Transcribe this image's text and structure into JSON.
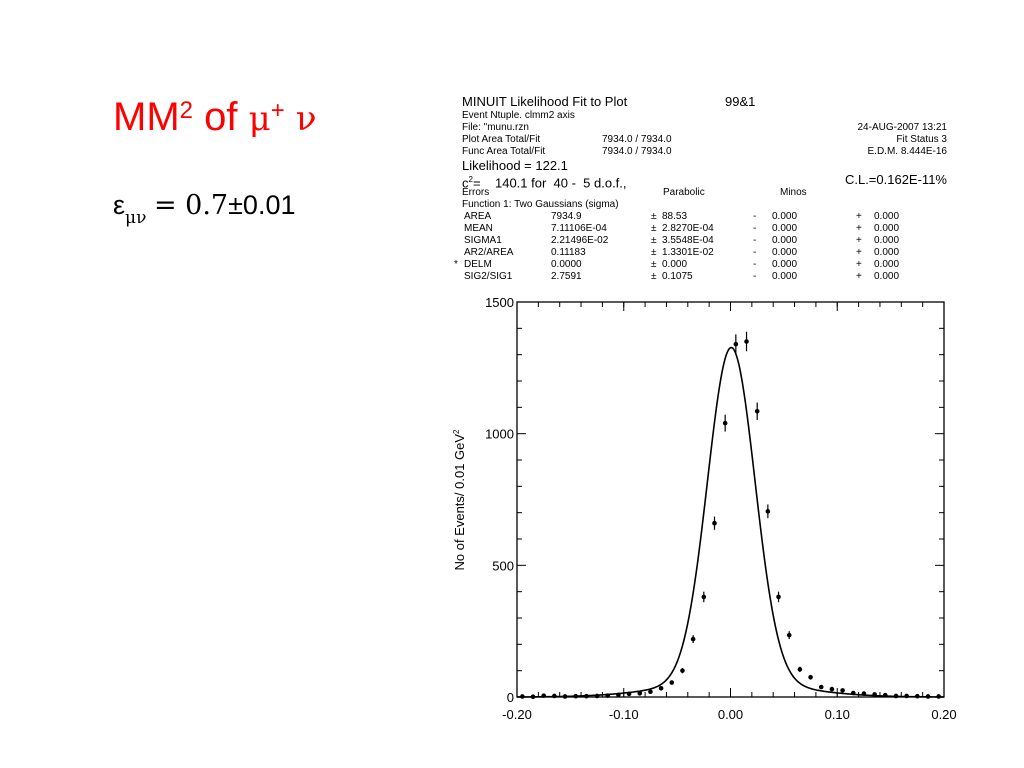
{
  "slide": {
    "title_main": "MM",
    "title_sup": "2",
    "title_of": " of ",
    "title_mu": "μ",
    "title_plus": "+",
    "title_nu": "ν",
    "eff_symbol": "ε",
    "eff_sub": "μν",
    "eff_eq": "= 0.7",
    "eff_err": "±0.01"
  },
  "fit_box": {
    "title": "MINUIT Likelihood Fit to Plot",
    "plot_id": "99&1",
    "ntuple": "Event Ntuple. clmm2 axis",
    "file": "File: \"munu.rzn",
    "date": "24-AUG-2007 13:21",
    "plot_area_label": "Plot Area Total/Fit",
    "plot_area_value": "7934.0 / 7934.0",
    "fit_status": "Fit Status  3",
    "func_area_label": "Func Area Total/Fit",
    "func_area_value": "7934.0 / 7934.0",
    "edm": "E.D.M. 8.444E-16",
    "likelihood": "Likelihood =    122.1",
    "chi2_sym": "c",
    "chi2_sup": "2",
    "chi2_text": "=    140.1 for  40 -  5 d.o.f.,",
    "cl": "C.L.=0.162E-11%",
    "errors": "Errors",
    "parabolic": "Parabolic",
    "minos": "Minos",
    "function": "Function  1: Two Gaussians (sigma)",
    "params": [
      {
        "mark": "",
        "name": "AREA",
        "value": "7934.9",
        "pm": "±",
        "err": "88.53",
        "minus": "-",
        "mneg": "0.000",
        "plus": "+",
        "mpos": "0.000"
      },
      {
        "mark": "",
        "name": "MEAN",
        "value": "7.11106E-04",
        "pm": "±",
        "err": "2.8270E-04",
        "minus": "-",
        "mneg": "0.000",
        "plus": "+",
        "mpos": "0.000"
      },
      {
        "mark": "",
        "name": "SIGMA1",
        "value": "2.21496E-02",
        "pm": "±",
        "err": "3.5548E-04",
        "minus": "-",
        "mneg": "0.000",
        "plus": "+",
        "mpos": "0.000"
      },
      {
        "mark": "",
        "name": "AR2/AREA",
        "value": "0.11183",
        "pm": "±",
        "err": "1.3301E-02",
        "minus": "-",
        "mneg": "0.000",
        "plus": "+",
        "mpos": "0.000"
      },
      {
        "mark": "*",
        "name": "DELM",
        "value": "0.0000",
        "pm": "±",
        "err": "0.000",
        "minus": "-",
        "mneg": "0.000",
        "plus": "+",
        "mpos": "0.000"
      },
      {
        "mark": "",
        "name": "SIG2/SIG1",
        "value": "2.7591",
        "pm": "±",
        "err": "0.1075",
        "minus": "-",
        "mneg": "0.000",
        "plus": "+",
        "mpos": "0.000"
      }
    ]
  },
  "chart_data": {
    "type": "scatter",
    "title": "",
    "xlabel": "",
    "ylabel": "No of Events/ 0.01 GeV",
    "ylabel_sup": "2",
    "xlim": [
      -0.2,
      0.2
    ],
    "ylim": [
      0,
      1500
    ],
    "x_ticks": [
      "-0.20",
      "-0.10",
      "0.00",
      "0.10",
      "0.20"
    ],
    "x_tick_values": [
      -0.2,
      -0.1,
      0.0,
      0.1,
      0.2
    ],
    "y_ticks": [
      "0",
      "500",
      "1000",
      "1500"
    ],
    "y_tick_values": [
      0,
      500,
      1000,
      1500
    ],
    "grid": false,
    "series": [
      {
        "kind": "data",
        "points": [
          [
            -0.195,
            2,
            0
          ],
          [
            -0.185,
            1,
            0
          ],
          [
            -0.175,
            5,
            3
          ],
          [
            -0.165,
            4,
            3
          ],
          [
            -0.155,
            2,
            0
          ],
          [
            -0.145,
            3,
            0
          ],
          [
            -0.135,
            3,
            0
          ],
          [
            -0.125,
            4,
            3
          ],
          [
            -0.115,
            5,
            3
          ],
          [
            -0.105,
            8,
            4
          ],
          [
            -0.095,
            12,
            5
          ],
          [
            -0.085,
            14,
            5
          ],
          [
            -0.075,
            20,
            6
          ],
          [
            -0.065,
            33,
            7
          ],
          [
            -0.055,
            55,
            8
          ],
          [
            -0.045,
            100,
            10
          ],
          [
            -0.035,
            220,
            15
          ],
          [
            -0.025,
            380,
            20
          ],
          [
            -0.015,
            660,
            25
          ],
          [
            -0.005,
            1040,
            32
          ],
          [
            0.005,
            1340,
            37
          ],
          [
            0.015,
            1350,
            37
          ],
          [
            0.025,
            1085,
            33
          ],
          [
            0.035,
            705,
            26
          ],
          [
            0.045,
            380,
            20
          ],
          [
            0.055,
            235,
            15
          ],
          [
            0.065,
            105,
            10
          ],
          [
            0.075,
            75,
            9
          ],
          [
            0.085,
            38,
            6
          ],
          [
            0.095,
            30,
            6
          ],
          [
            0.105,
            25,
            5
          ],
          [
            0.115,
            15,
            4
          ],
          [
            0.125,
            13,
            4
          ],
          [
            0.135,
            10,
            3
          ],
          [
            0.145,
            7,
            3
          ],
          [
            0.155,
            4,
            0
          ],
          [
            0.165,
            4,
            0
          ],
          [
            0.175,
            3,
            0
          ],
          [
            0.185,
            2,
            0
          ],
          [
            0.195,
            2,
            0
          ]
        ]
      },
      {
        "kind": "fit",
        "model": "two_gaussians",
        "area": 7934.9,
        "mean": 0.000711,
        "sigma1": 0.02215,
        "ar2_frac": 0.11183,
        "sig2_over_sig1": 2.7591,
        "bin_width": 0.01
      }
    ]
  }
}
